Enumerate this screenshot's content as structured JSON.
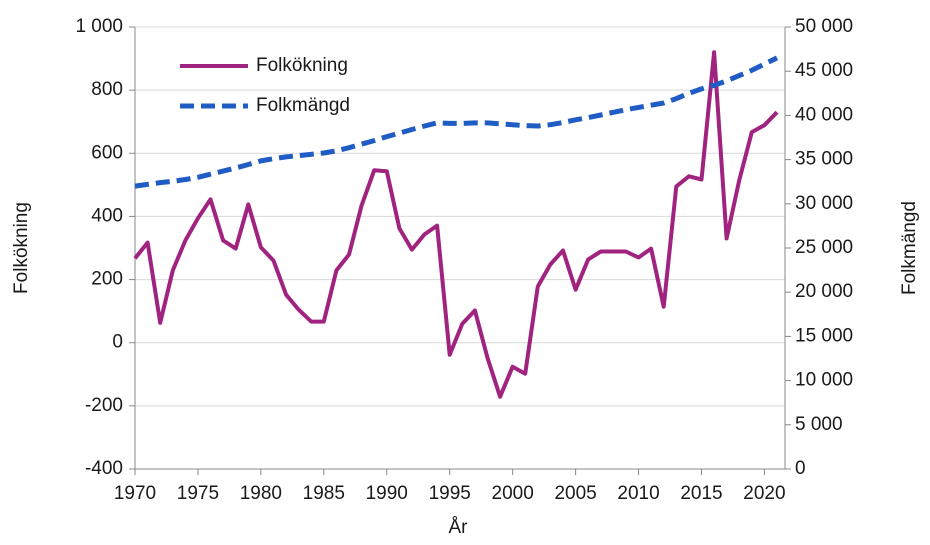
{
  "chart_data": {
    "type": "line",
    "x": [
      1970,
      1971,
      1972,
      1973,
      1974,
      1975,
      1976,
      1977,
      1978,
      1979,
      1980,
      1981,
      1982,
      1983,
      1984,
      1985,
      1986,
      1987,
      1988,
      1989,
      1990,
      1991,
      1992,
      1993,
      1994,
      1995,
      1996,
      1997,
      1998,
      1999,
      2000,
      2001,
      2002,
      2003,
      2004,
      2005,
      2006,
      2007,
      2008,
      2009,
      2010,
      2011,
      2012,
      2013,
      2014,
      2015,
      2016,
      2017,
      2018,
      2019,
      2020,
      2021
    ],
    "series": [
      {
        "name": "Folkökning",
        "color": "#a0237f",
        "dash": false,
        "values": [
          267,
          317,
          63,
          229,
          324,
          394,
          454,
          324,
          298,
          438,
          302,
          260,
          152,
          105,
          67,
          67,
          229,
          279,
          435,
          546,
          543,
          362,
          295,
          343,
          371,
          -38,
          60,
          102,
          -48,
          -171,
          -76,
          -98,
          178,
          248,
          292,
          168,
          264,
          289,
          289,
          289,
          270,
          298,
          114,
          495,
          527,
          517,
          920,
          330,
          514,
          667,
          689,
          730
        ]
      },
      {
        "name": "Folkmängd",
        "color": "#1f5cc4",
        "dash": true,
        "axis": "y2",
        "values": [
          32000,
          32200,
          32400,
          32550,
          32750,
          33000,
          33350,
          33700,
          34050,
          34450,
          34850,
          35100,
          35300,
          35450,
          35600,
          35750,
          36000,
          36350,
          36750,
          37150,
          37600,
          38000,
          38400,
          38800,
          39150,
          39100,
          39100,
          39150,
          39150,
          39050,
          38950,
          38850,
          38800,
          38950,
          39200,
          39500,
          39750,
          40050,
          40350,
          40650,
          40900,
          41150,
          41400,
          41900,
          42500,
          43000,
          43400,
          43900,
          44500,
          45100,
          45800,
          46500
        ]
      }
    ],
    "x_label": "År",
    "y_label": "Folkökning",
    "y2_label": "Folkmängd",
    "xlim": [
      1970,
      2021
    ],
    "xticks": [
      1970,
      1975,
      1980,
      1985,
      1990,
      1995,
      2000,
      2005,
      2010,
      2015,
      2020
    ],
    "ylim": [
      -400,
      1000
    ],
    "yticks": [
      -400,
      -200,
      0,
      200,
      400,
      600,
      800,
      {
        "value": 1000,
        "label": "1 000"
      }
    ],
    "y2lim": [
      0,
      50000
    ],
    "y2ticks": [
      0,
      {
        "value": 5000,
        "label": "5 000"
      },
      {
        "value": 10000,
        "label": "10 000"
      },
      {
        "value": 15000,
        "label": "15 000"
      },
      {
        "value": 20000,
        "label": "20 000"
      },
      {
        "value": 25000,
        "label": "25 000"
      },
      {
        "value": 30000,
        "label": "30 000"
      },
      {
        "value": 35000,
        "label": "35 000"
      },
      {
        "value": 40000,
        "label": "40 000"
      },
      {
        "value": 45000,
        "label": "45 000"
      },
      {
        "value": 50000,
        "label": "50 000"
      }
    ],
    "grid": true,
    "legend": "top-left"
  }
}
